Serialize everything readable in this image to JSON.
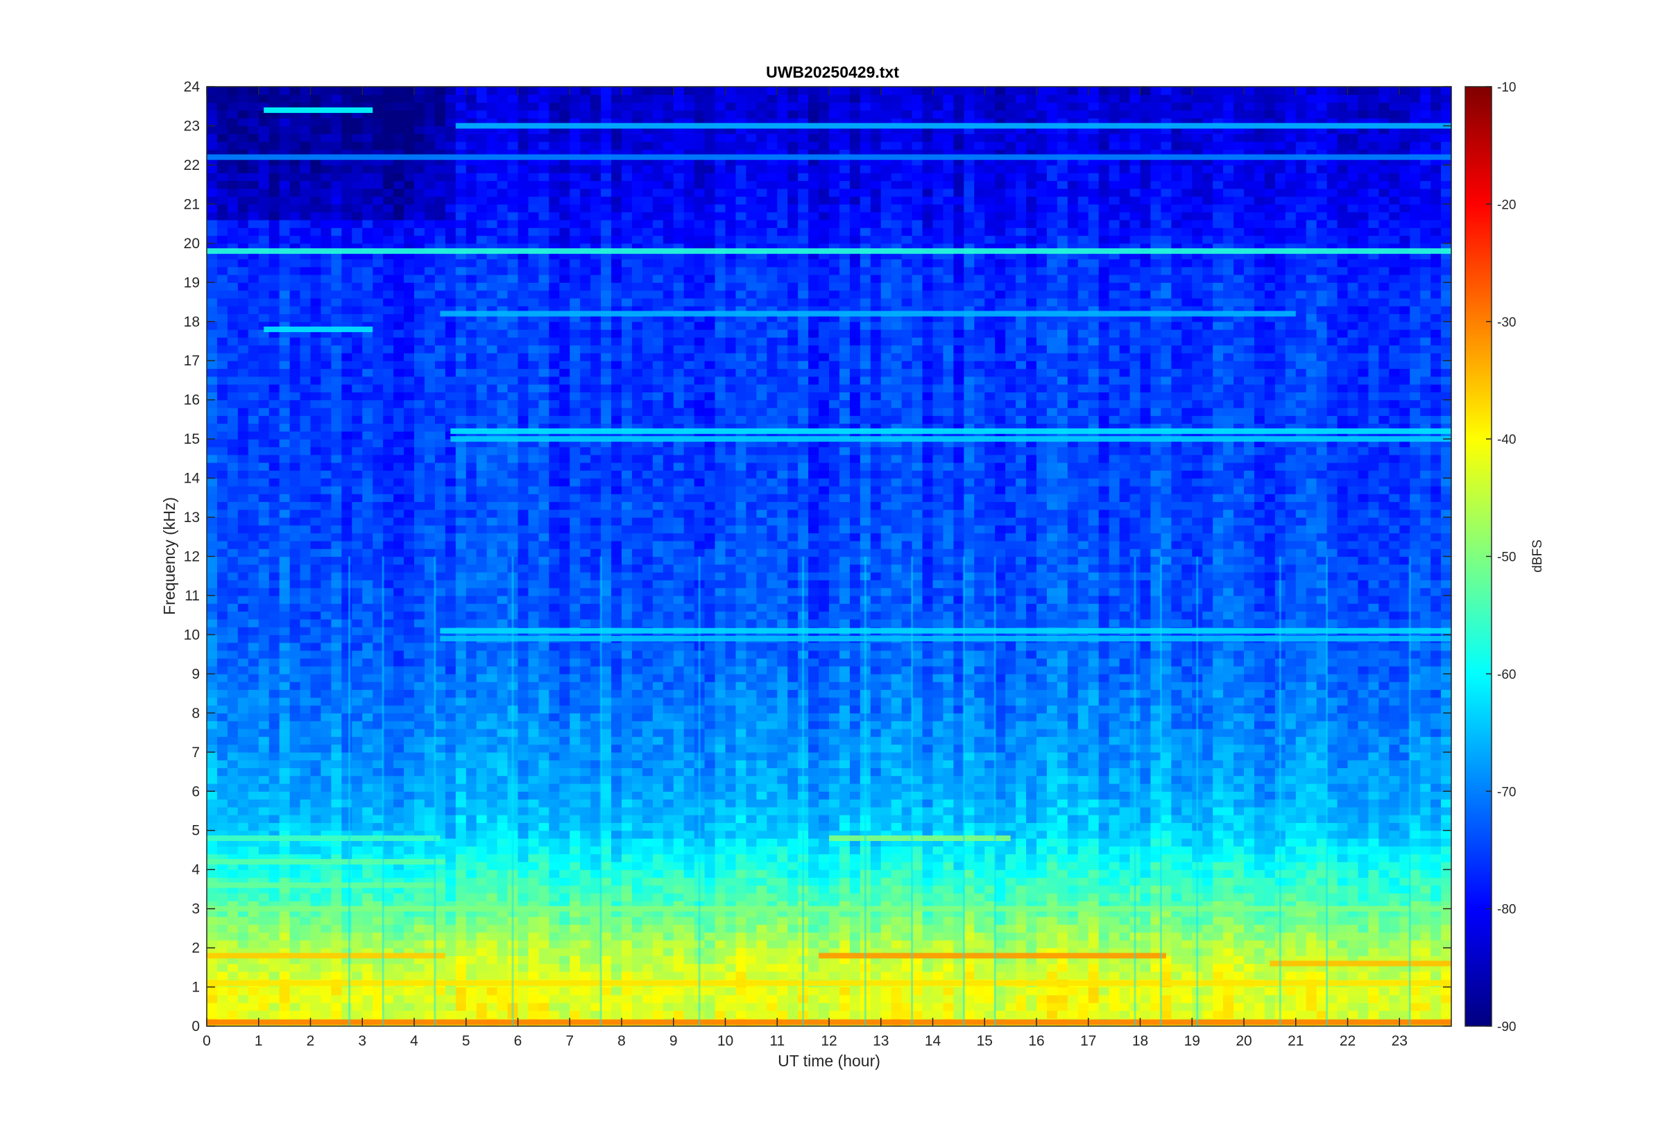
{
  "chart_data": {
    "type": "heatmap",
    "title": "UWB20250429.txt",
    "xlabel": "UT time (hour)",
    "ylabel": "Frequency (kHz)",
    "xlim": [
      0,
      24
    ],
    "ylim": [
      0,
      24
    ],
    "xticks": [
      0,
      1,
      2,
      3,
      4,
      5,
      6,
      7,
      8,
      9,
      10,
      11,
      12,
      13,
      14,
      15,
      16,
      17,
      18,
      19,
      20,
      21,
      22,
      23
    ],
    "yticks": [
      0,
      1,
      2,
      3,
      4,
      5,
      6,
      7,
      8,
      9,
      10,
      11,
      12,
      13,
      14,
      15,
      16,
      17,
      18,
      19,
      20,
      21,
      22,
      23,
      24
    ],
    "colormap": "jet",
    "colorbar": {
      "label": "dBFS",
      "clim": [
        -90,
        -10
      ],
      "ticks": [
        -10,
        -20,
        -30,
        -40,
        -50,
        -60,
        -70,
        -80,
        -90
      ]
    },
    "background_db_profile": [
      {
        "freq_khz": 0.0,
        "db": -42
      },
      {
        "freq_khz": 1.0,
        "db": -42
      },
      {
        "freq_khz": 2.0,
        "db": -46
      },
      {
        "freq_khz": 3.0,
        "db": -53
      },
      {
        "freq_khz": 4.0,
        "db": -58
      },
      {
        "freq_khz": 5.0,
        "db": -64
      },
      {
        "freq_khz": 6.0,
        "db": -67
      },
      {
        "freq_khz": 8.0,
        "db": -70
      },
      {
        "freq_khz": 10.0,
        "db": -73
      },
      {
        "freq_khz": 14.0,
        "db": -75
      },
      {
        "freq_khz": 19.0,
        "db": -76
      },
      {
        "freq_khz": 21.0,
        "db": -80
      },
      {
        "freq_khz": 24.0,
        "db": -84
      }
    ],
    "features": [
      {
        "freq_khz": 19.8,
        "t_start": 0,
        "t_end": 24,
        "db": -57
      },
      {
        "freq_khz": 22.2,
        "t_start": 0,
        "t_end": 24,
        "db": -70
      },
      {
        "freq_khz": 18.2,
        "t_start": 4.5,
        "t_end": 21,
        "db": -66
      },
      {
        "freq_khz": 15.2,
        "t_start": 4.7,
        "t_end": 24,
        "db": -62
      },
      {
        "freq_khz": 15.0,
        "t_start": 4.7,
        "t_end": 24,
        "db": -64
      },
      {
        "freq_khz": 10.1,
        "t_start": 4.5,
        "t_end": 24,
        "db": -63
      },
      {
        "freq_khz": 9.9,
        "t_start": 4.5,
        "t_end": 24,
        "db": -65
      },
      {
        "freq_khz": 23.4,
        "t_start": 1.1,
        "t_end": 3.2,
        "db": -60
      },
      {
        "freq_khz": 23.0,
        "t_start": 4.8,
        "t_end": 24,
        "db": -66
      },
      {
        "freq_khz": 17.8,
        "t_start": 1.1,
        "t_end": 3.2,
        "db": -62
      },
      {
        "freq_khz": 4.8,
        "t_start": 0,
        "t_end": 4.5,
        "db": -55
      },
      {
        "freq_khz": 4.8,
        "t_start": 12,
        "t_end": 15.5,
        "db": -50
      },
      {
        "freq_khz": 4.2,
        "t_start": 0,
        "t_end": 4.6,
        "db": -53
      },
      {
        "freq_khz": 3.6,
        "t_start": 0,
        "t_end": 4.6,
        "db": -52
      },
      {
        "freq_khz": 3.0,
        "t_start": 0,
        "t_end": 24,
        "db": -50
      },
      {
        "freq_khz": 1.8,
        "t_start": 0,
        "t_end": 4.6,
        "db": -36
      },
      {
        "freq_khz": 1.8,
        "t_start": 11.8,
        "t_end": 18.5,
        "db": -32
      },
      {
        "freq_khz": 1.6,
        "t_start": 20.5,
        "t_end": 24,
        "db": -35
      },
      {
        "freq_khz": 1.1,
        "t_start": 0,
        "t_end": 24,
        "db": -38
      },
      {
        "freq_khz": 0.1,
        "t_start": 0,
        "t_end": 24,
        "db": -30
      }
    ],
    "impulse_times_hour": [
      2.75,
      3.4,
      4.4,
      5.9,
      7.6,
      9.5,
      11.5,
      12.7,
      13.6,
      14.6,
      15.2,
      17.9,
      18.4,
      19.1,
      20.7,
      21.6,
      23.2
    ]
  }
}
